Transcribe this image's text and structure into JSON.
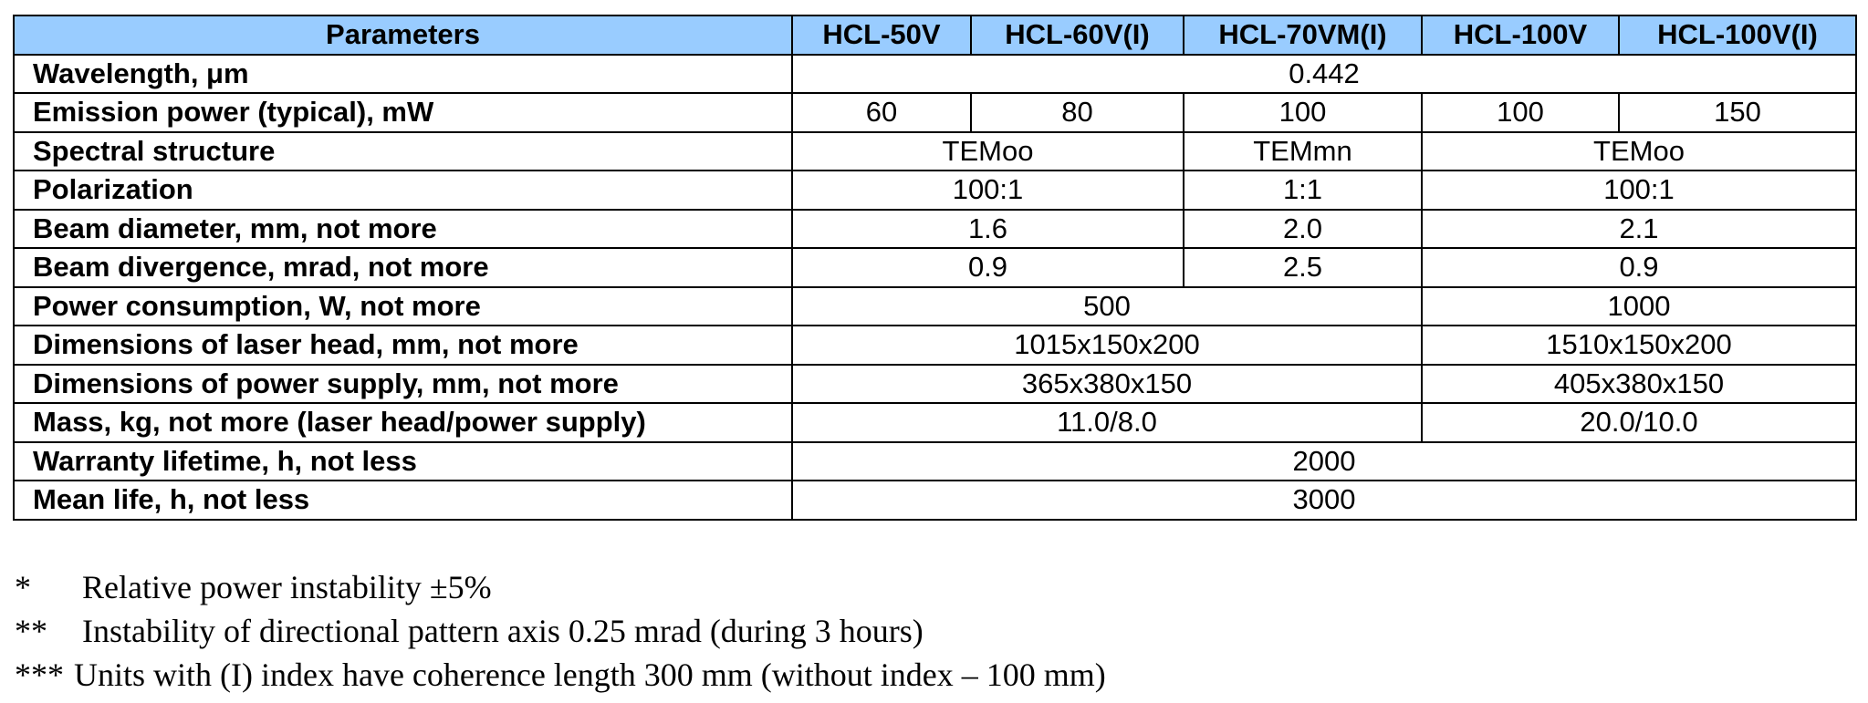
{
  "table": {
    "headers": [
      "Parameters",
      "HCL-50V",
      "HCL-60V(I)",
      "HCL-70VM(I)",
      "HCL-100V",
      "HCL-100V(I)"
    ],
    "rows": [
      {
        "param": "Wavelength, μm",
        "values": [
          "0.442"
        ]
      },
      {
        "param": "Emission power (typical), mW",
        "values": [
          "60",
          "80",
          "100",
          "100",
          "150"
        ]
      },
      {
        "param": "Spectral structure",
        "values": [
          "TEMoo",
          "TEMmn",
          "TEMoo"
        ]
      },
      {
        "param": "Polarization",
        "values": [
          "100:1",
          "1:1",
          "100:1"
        ]
      },
      {
        "param": "Beam diameter, mm, not more",
        "values": [
          "1.6",
          "2.0",
          "2.1"
        ]
      },
      {
        "param": "Beam divergence, mrad, not more",
        "values": [
          "0.9",
          "2.5",
          "0.9"
        ]
      },
      {
        "param": "Power consumption, W, not more",
        "values": [
          "500",
          "1000"
        ]
      },
      {
        "param": "Dimensions of laser head, mm, not more",
        "values": [
          "1015x150x200",
          "1510x150x200"
        ]
      },
      {
        "param": "Dimensions of power supply, mm, not more",
        "values": [
          "365x380x150",
          "405x380x150"
        ]
      },
      {
        "param": "Mass, kg, not more (laser head/power supply)",
        "values": [
          "11.0/8.0",
          "20.0/10.0"
        ]
      },
      {
        "param": "Warranty lifetime, h, not less",
        "values": [
          "2000"
        ]
      },
      {
        "param": "Mean life, h, not less",
        "values": [
          "3000"
        ]
      }
    ]
  },
  "notes": [
    {
      "mark": "*",
      "text": "Relative power instability ±5%"
    },
    {
      "mark": "**",
      "text": "Instability of directional pattern axis 0.25 mrad (during 3 hours)"
    },
    {
      "mark": "***",
      "text": "Units with (I) index have coherence length 300 mm (without index – 100 mm)"
    }
  ],
  "colors": {
    "header_background": "#99ccff",
    "border": "#000000",
    "text": "#000000"
  }
}
